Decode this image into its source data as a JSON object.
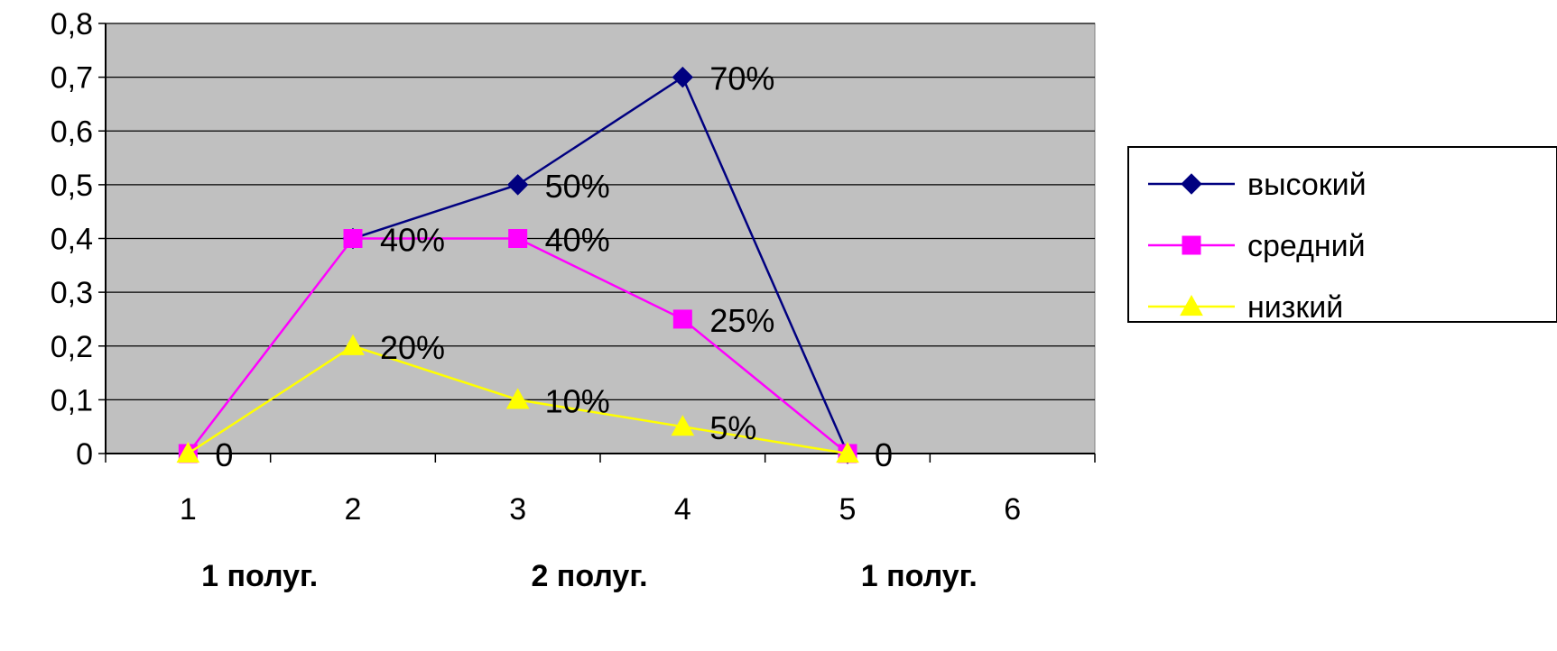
{
  "chart_data": {
    "type": "line",
    "title": "",
    "xlabel": "",
    "ylabel": "",
    "x": [
      1,
      2,
      3,
      4,
      5,
      6
    ],
    "xlim": [
      0.5,
      6.5
    ],
    "ylim": [
      0,
      0.8
    ],
    "yticks": [
      "0",
      "0,1",
      "0,2",
      "0,3",
      "0,4",
      "0,5",
      "0,6",
      "0,7",
      "0,8"
    ],
    "xticks": [
      "1",
      "2",
      "3",
      "4",
      "5",
      "6"
    ],
    "grid": true,
    "legend_position": "right",
    "plot_background": "#c0c0c0",
    "period_labels": [
      "1 полуг.",
      "2 полуг.",
      "1 полуг."
    ],
    "series": [
      {
        "name": "высокий",
        "color": "#000080",
        "marker": "diamond",
        "points": [
          [
            2,
            0.4
          ],
          [
            3,
            0.5
          ],
          [
            4,
            0.7
          ],
          [
            5,
            0
          ]
        ],
        "data_labels": [
          "",
          "50%",
          "70%",
          ""
        ]
      },
      {
        "name": "средний",
        "color": "#ff00ff",
        "marker": "square",
        "points": [
          [
            1,
            0
          ],
          [
            2,
            0.4
          ],
          [
            3,
            0.4
          ],
          [
            4,
            0.25
          ],
          [
            5,
            0
          ]
        ],
        "data_labels": [
          "",
          "40%",
          "40%",
          "25%",
          ""
        ]
      },
      {
        "name": "низкий",
        "color": "#ffff00",
        "marker": "triangle",
        "points": [
          [
            1,
            0
          ],
          [
            2,
            0.2
          ],
          [
            3,
            0.1
          ],
          [
            4,
            0.05
          ],
          [
            5,
            0
          ]
        ],
        "data_labels": [
          "0",
          "20%",
          "10%",
          "5%",
          "0"
        ]
      }
    ]
  }
}
